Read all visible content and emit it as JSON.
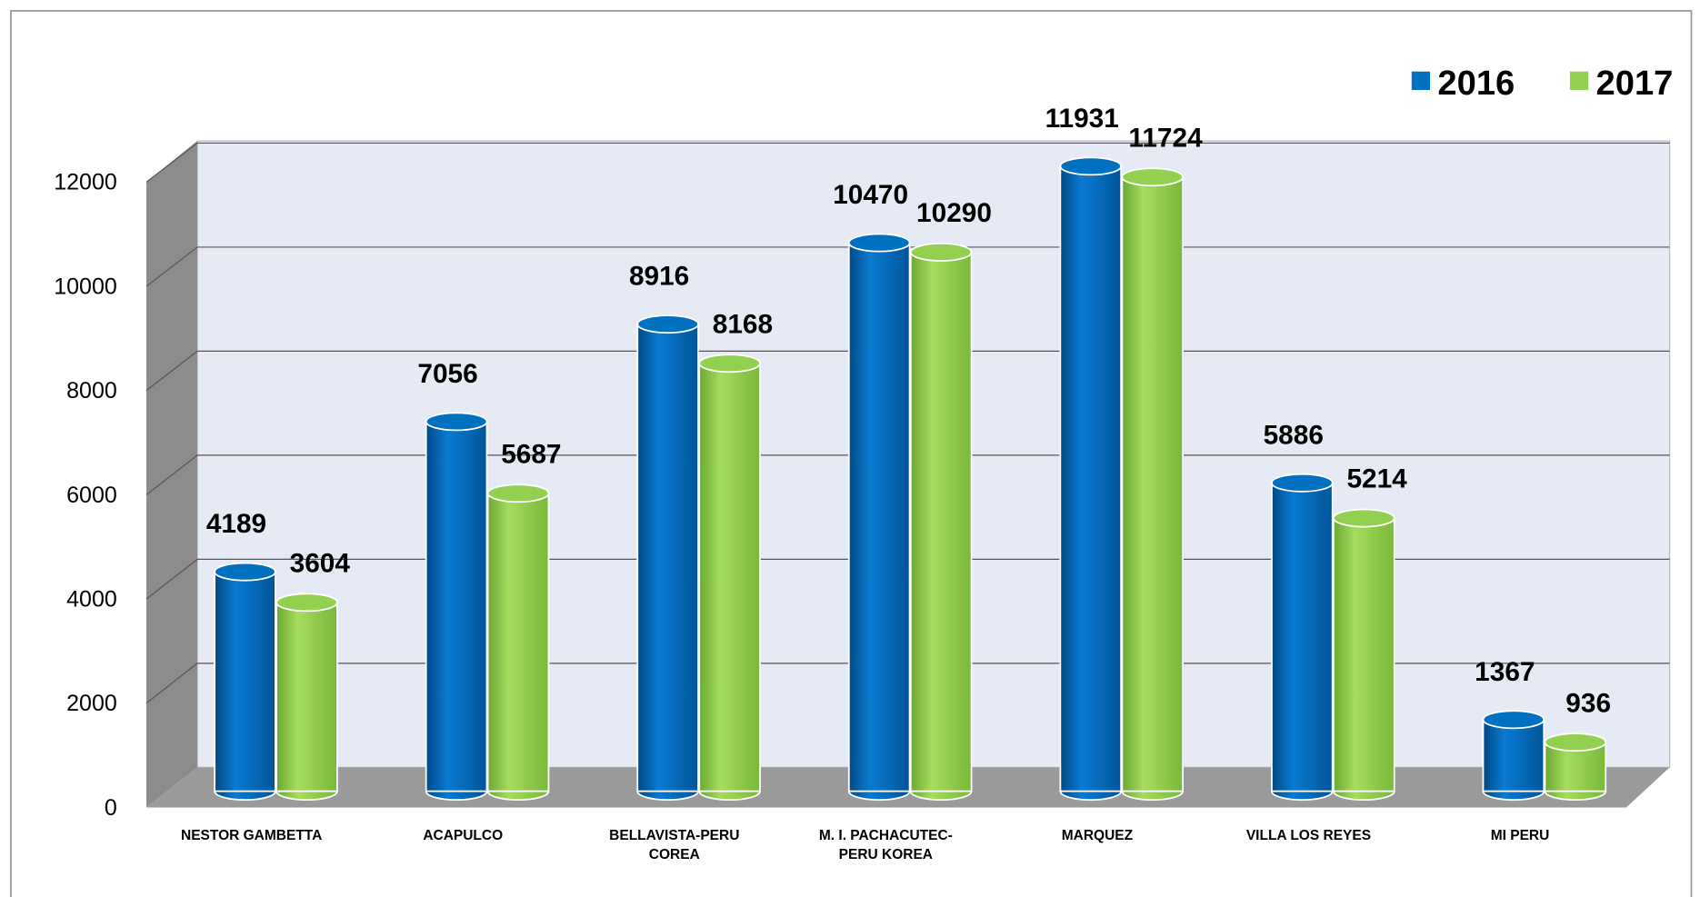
{
  "chart_data": {
    "type": "bar3d",
    "categories": [
      "NESTOR GAMBETTA",
      "ACAPULCO",
      "BELLAVISTA-PERU COREA",
      "M. I. PACHACUTEC-PERU KOREA",
      "MARQUEZ",
      "VILLA LOS REYES",
      "MI PERU"
    ],
    "series": [
      {
        "name": "2016",
        "color": "#0070c0",
        "values": [
          4189,
          7056,
          8916,
          10470,
          11931,
          5886,
          1367
        ]
      },
      {
        "name": "2017",
        "color": "#92d050",
        "values": [
          3604,
          5687,
          8168,
          10290,
          11724,
          5214,
          936
        ]
      }
    ],
    "ylim": [
      0,
      12000
    ],
    "yticks": [
      0,
      2000,
      4000,
      6000,
      8000,
      10000,
      12000
    ],
    "grid": true,
    "legend": "top-right"
  }
}
